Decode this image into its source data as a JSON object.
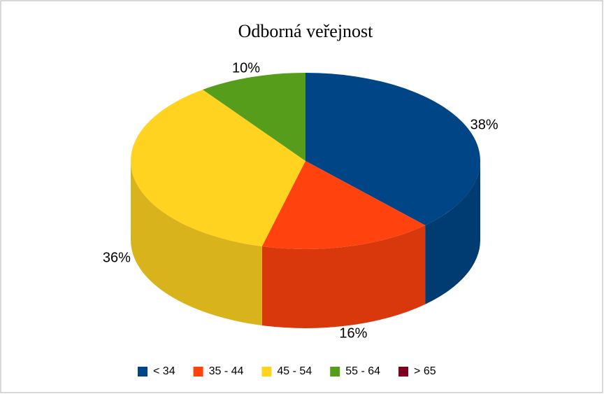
{
  "chart_data": {
    "type": "pie3d",
    "title": "Odborná veřejnost",
    "categories": [
      "< 34",
      "35 - 44",
      "45 - 54",
      "55 - 64",
      "> 65"
    ],
    "values": [
      38,
      16,
      36,
      10,
      0
    ],
    "value_labels": [
      "38%",
      "16%",
      "36%",
      "10%",
      null
    ],
    "colors": [
      "#004586",
      "#ff420e",
      "#ffd320",
      "#579d1c",
      "#7e0021"
    ],
    "legend": "bottom"
  }
}
